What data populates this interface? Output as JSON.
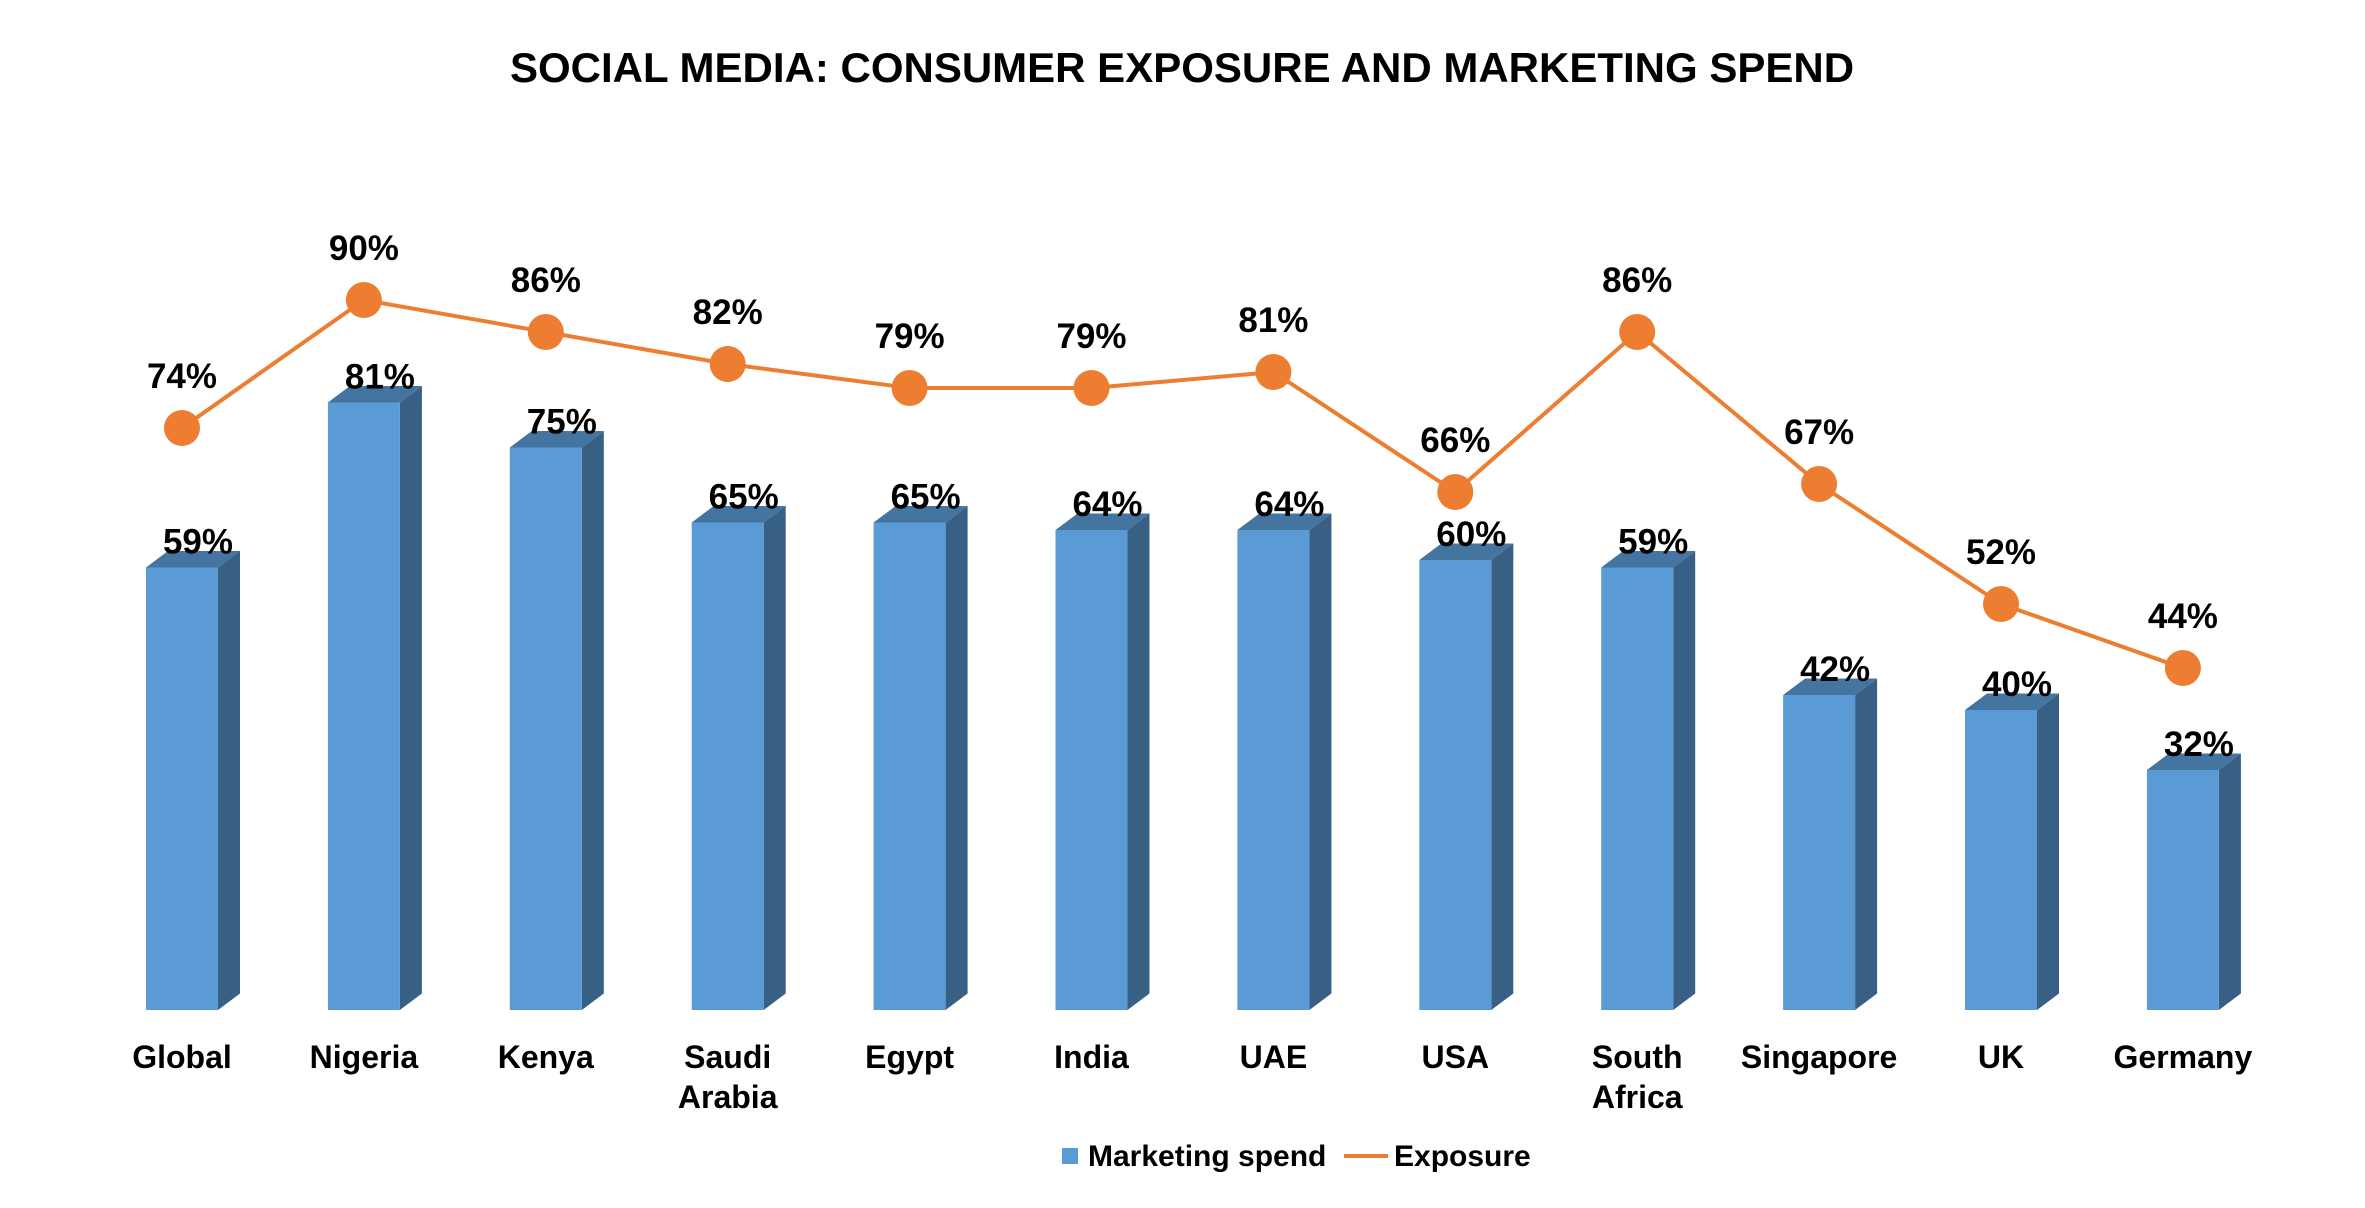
{
  "chart_data": {
    "type": "bar",
    "title": "SOCIAL MEDIA: CONSUMER EXPOSURE AND MARKETING SPEND",
    "categories": [
      [
        "Global"
      ],
      [
        "Nigeria"
      ],
      [
        "Kenya"
      ],
      [
        "Saudi",
        "Arabia"
      ],
      [
        "Egypt"
      ],
      [
        "India"
      ],
      [
        "UAE"
      ],
      [
        "USA"
      ],
      [
        "South",
        "Africa"
      ],
      [
        "Singapore"
      ],
      [
        "UK"
      ],
      [
        "Germany"
      ]
    ],
    "series": [
      {
        "name": "Marketing spend",
        "type": "bar",
        "color": "#5B9BD5",
        "values": [
          59,
          81,
          75,
          65,
          65,
          64,
          64,
          60,
          59,
          42,
          40,
          32
        ],
        "labels": [
          "59%",
          "81%",
          "75%",
          "65%",
          "65%",
          "64%",
          "64%",
          "60%",
          "59%",
          "42%",
          "40%",
          "32%"
        ]
      },
      {
        "name": "Exposure",
        "type": "line",
        "color": "#ED7D31",
        "values": [
          74,
          90,
          86,
          82,
          79,
          79,
          81,
          66,
          86,
          67,
          52,
          44
        ],
        "labels": [
          "74%",
          "90%",
          "86%",
          "82%",
          "79%",
          "79%",
          "81%",
          "66%",
          "86%",
          "67%",
          "52%",
          "44%"
        ]
      }
    ],
    "ylim": [
      0,
      100
    ],
    "grid": false,
    "legend": "bottom"
  }
}
